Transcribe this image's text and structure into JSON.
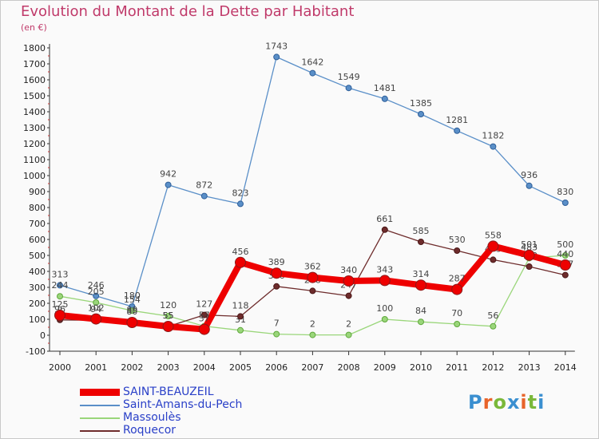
{
  "title": "Evolution du Montant de la Dette par Habitant",
  "unit": "(en €)",
  "logo": "Proxiti",
  "chart_data": {
    "type": "line",
    "title": "Evolution du Montant de la Dette par Habitant",
    "ylabel": "(en €)",
    "xlabel": "",
    "x": [
      "2000",
      "2001",
      "2002",
      "2003",
      "2004",
      "2005",
      "2006",
      "2007",
      "2008",
      "2009",
      "2010",
      "2011",
      "2012",
      "2013",
      "2014"
    ],
    "ylim": [
      -100,
      1800
    ],
    "yticks": [
      -100,
      0,
      100,
      200,
      300,
      400,
      500,
      600,
      700,
      800,
      900,
      1000,
      1100,
      1200,
      1300,
      1400,
      1500,
      1600,
      1700,
      1800
    ],
    "grid": false,
    "legend_position": "bottom-left",
    "series": [
      {
        "name": "Saint-Amans-du-Pech",
        "color": "#5a8fc8",
        "values": [
          313,
          246,
          180,
          942,
          872,
          823,
          1743,
          1642,
          1549,
          1481,
          1385,
          1281,
          1182,
          936,
          830
        ]
      },
      {
        "name": "Massoulès",
        "color": "#9ad67a",
        "values": [
          244,
          205,
          154,
          120,
          57,
          31,
          7,
          2,
          2,
          100,
          84,
          70,
          56,
          483,
          500
        ]
      },
      {
        "name": "Roquecor",
        "color": "#6e2c2c",
        "values": [
          96,
          94,
          89,
          55,
          127,
          118,
          306,
          278,
          247,
          661,
          585,
          530,
          473,
          430,
          377
        ]
      },
      {
        "name": "SAINT-BEAUZEIL",
        "color": "#ee0000",
        "values": [
          125,
          102,
          80,
          55,
          37,
          456,
          389,
          362,
          340,
          343,
          314,
          287,
          558,
          501,
          440
        ]
      }
    ]
  }
}
